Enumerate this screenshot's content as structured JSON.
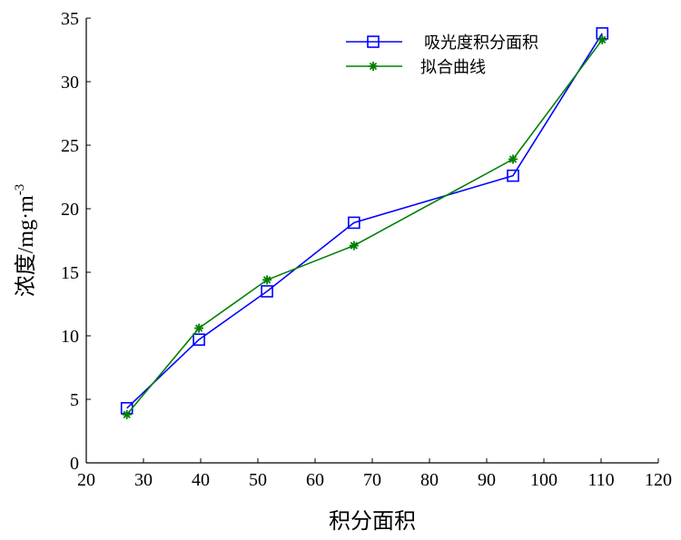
{
  "chart_data": {
    "type": "line",
    "xlabel": "积分面积",
    "ylabel": "浓度/mg·m",
    "ylabel_sup": "-3",
    "xlim": [
      20,
      120
    ],
    "ylim": [
      0,
      35
    ],
    "xticks": [
      20,
      30,
      40,
      50,
      60,
      70,
      80,
      90,
      100,
      110,
      120
    ],
    "yticks": [
      0,
      5,
      10,
      15,
      20,
      25,
      30,
      35
    ],
    "legend_position": "top-right",
    "series": [
      {
        "name": "吸光度积分面积",
        "color": "#0000ff",
        "marker": "square",
        "x": [
          27.1,
          39.7,
          51.6,
          66.8,
          94.6,
          110.2
        ],
        "y": [
          4.3,
          9.7,
          13.5,
          18.9,
          22.6,
          33.8
        ]
      },
      {
        "name": "拟合曲线",
        "color": "#008000",
        "marker": "star",
        "x": [
          27.1,
          39.7,
          51.6,
          66.8,
          94.6,
          110.2
        ],
        "y": [
          3.8,
          10.6,
          14.4,
          17.1,
          23.9,
          33.3
        ]
      }
    ]
  }
}
